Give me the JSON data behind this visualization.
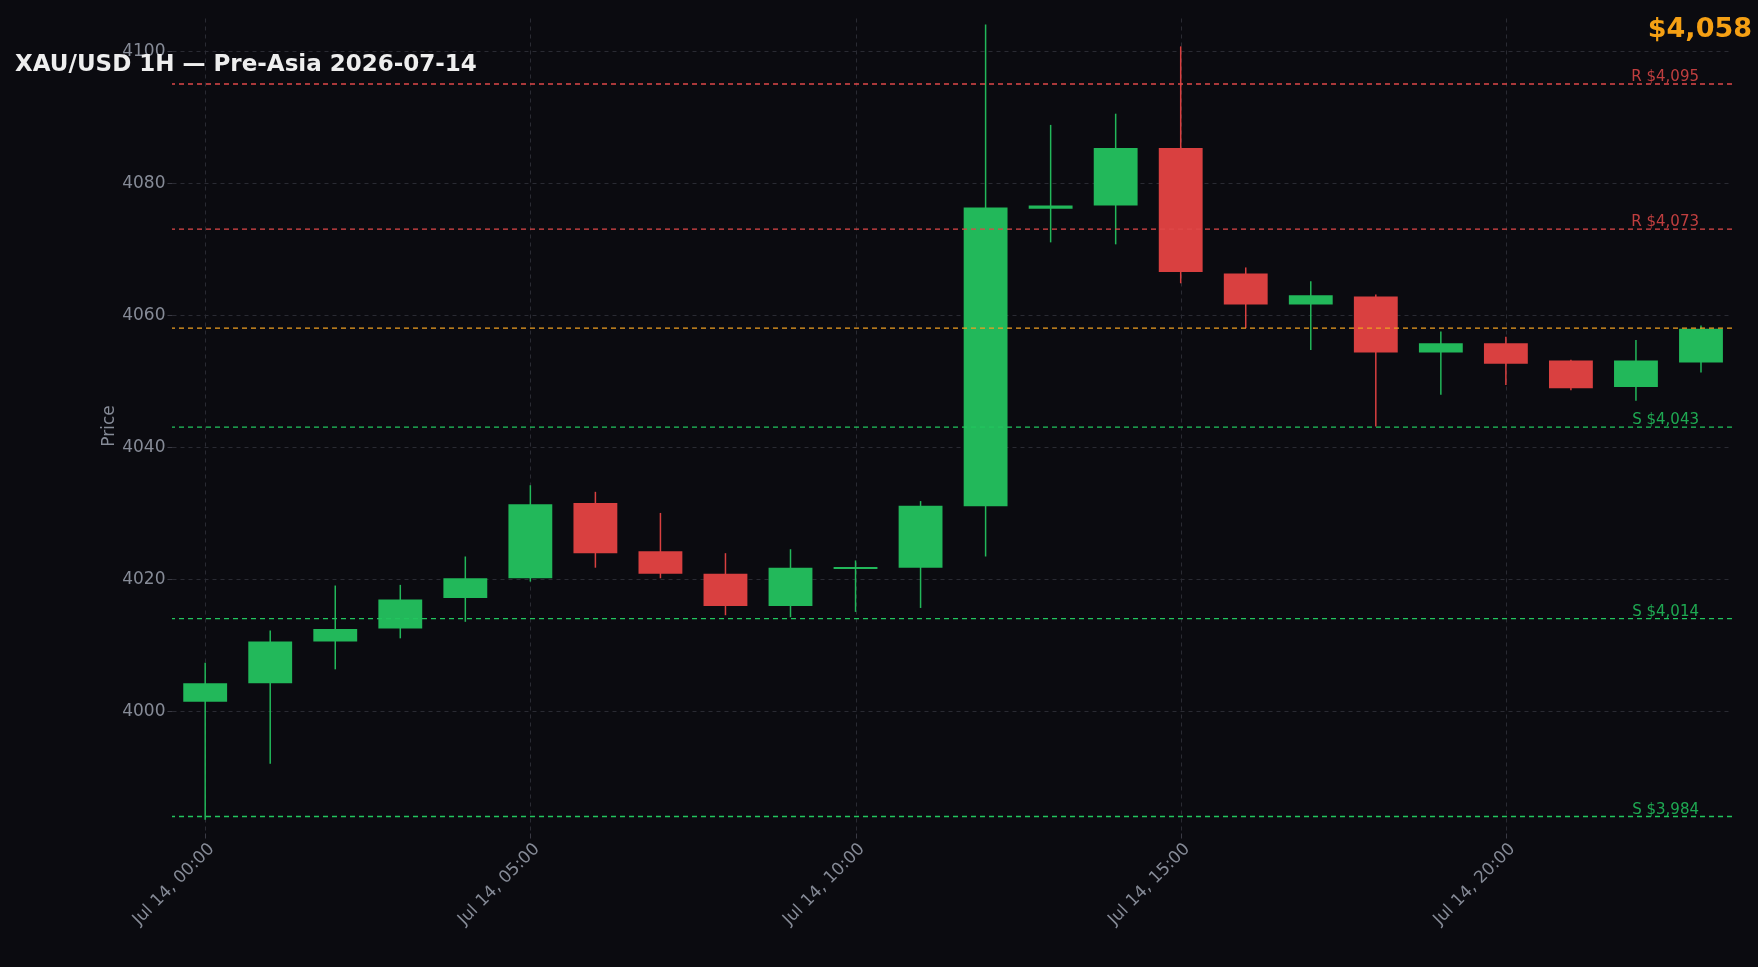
{
  "chart_data": {
    "type": "candlestick",
    "title": "XAU/USD 1H — Pre-Asia 2026-07-14",
    "ylabel": "Price",
    "x": [
      "2026-07-14T00:00",
      "2026-07-14T01:00",
      "2026-07-14T02:00",
      "2026-07-14T03:00",
      "2026-07-14T04:00",
      "2026-07-14T05:00",
      "2026-07-14T06:00",
      "2026-07-14T07:00",
      "2026-07-14T08:00",
      "2026-07-14T09:00",
      "2026-07-14T10:00",
      "2026-07-14T11:00",
      "2026-07-14T12:00",
      "2026-07-14T13:00",
      "2026-07-14T14:00",
      "2026-07-14T15:00",
      "2026-07-14T16:00",
      "2026-07-14T17:00",
      "2026-07-14T18:00",
      "2026-07-14T19:00",
      "2026-07-14T20:00",
      "2026-07-14T21:00",
      "2026-07-14T22:00",
      "2026-07-14T23:00"
    ],
    "ohlc": [
      [
        4001.4,
        4007.3,
        3983.5,
        4004.2
      ],
      [
        4004.2,
        4012.2,
        3992,
        4010.5
      ],
      [
        4010.5,
        4019,
        4006.3,
        4012.4
      ],
      [
        4012.5,
        4019.1,
        4011,
        4016.9
      ],
      [
        4017.1,
        4023.4,
        4013.5,
        4020.1
      ],
      [
        4020.1,
        4034.2,
        4019.6,
        4031.3
      ],
      [
        4031.5,
        4033.2,
        4021.7,
        4023.9
      ],
      [
        4024.2,
        4030,
        4020.1,
        4020.8
      ],
      [
        4020.8,
        4023.9,
        4014.5,
        4015.9
      ],
      [
        4015.9,
        4024.5,
        4014.2,
        4021.7
      ],
      [
        4021.5,
        4022.8,
        4015,
        4021.8
      ],
      [
        4021.7,
        4031.8,
        4015.6,
        4031.1
      ],
      [
        4031,
        4104,
        4023.4,
        4076.3
      ],
      [
        4076.1,
        4088.8,
        4071,
        4076.6
      ],
      [
        4076.6,
        4090.5,
        4070.7,
        4085.3
      ],
      [
        4085.3,
        4100.7,
        4064.8,
        4066.5
      ],
      [
        4066.3,
        4067.2,
        4058,
        4061.6
      ],
      [
        4061.6,
        4065.1,
        4054.7,
        4063
      ],
      [
        4062.8,
        4063.1,
        4043.1,
        4054.3
      ],
      [
        4054.3,
        4057.5,
        4047.9,
        4055.7
      ],
      [
        4055.7,
        4056.7,
        4049.4,
        4052.6
      ],
      [
        4053.1,
        4053.2,
        4048.6,
        4048.9
      ],
      [
        4049.1,
        4056.2,
        4047,
        4053.1
      ],
      [
        4052.8,
        4058.4,
        4051.3,
        4057.9
      ]
    ],
    "colors": [
      "#22b85a",
      "#22b85a",
      "#22b85a",
      "#22b85a",
      "#22b85a",
      "#22b85a",
      "#d94040",
      "#d94040",
      "#d94040",
      "#22b85a",
      "#22b85a",
      "#22b85a",
      "#22b85a",
      "#22b85a",
      "#22b85a",
      "#d94040",
      "#d94040",
      "#22b85a",
      "#d94040",
      "#22b85a",
      "#d94040",
      "#d94040",
      "#22b85a",
      "#22b85a"
    ],
    "xlim": [
      "2026-07-13T23:34",
      "2026-07-14T23:24"
    ],
    "xticks": [
      {
        "value": "2026-07-14T00:00",
        "label": "Jul 14, 00:00"
      },
      {
        "value": "2026-07-14T05:00",
        "label": "Jul 14, 05:00"
      },
      {
        "value": "2026-07-14T10:00",
        "label": "Jul 14, 10:00"
      },
      {
        "value": "2026-07-14T15:00",
        "label": "Jul 14, 15:00"
      },
      {
        "value": "2026-07-14T20:00",
        "label": "Jul 14, 20:00"
      }
    ],
    "ylim": [
      3981.5,
      4105
    ],
    "yticks": [
      4000,
      4020,
      4040,
      4060,
      4080,
      4100
    ],
    "grid": true,
    "ref_lines": [
      {
        "axis": "y",
        "value": 4095,
        "label": "R $4,095",
        "color": "#e04848",
        "line_style": "dashed"
      },
      {
        "axis": "y",
        "value": 4073,
        "label": "R $4,073",
        "color": "#e04848",
        "line_style": "dashed"
      },
      {
        "axis": "y",
        "value": 4058,
        "label": null,
        "color": "#f0a020",
        "line_style": "dashed"
      },
      {
        "axis": "y",
        "value": 4043,
        "label": "S $4,043",
        "color": "#22c55e",
        "line_style": "dashed"
      },
      {
        "axis": "y",
        "value": 4014,
        "label": "S $4,014",
        "color": "#22c55e",
        "line_style": "dashed"
      },
      {
        "axis": "y",
        "value": 3984,
        "label": "S $3,984",
        "color": "#22c55e",
        "line_style": "dashed"
      }
    ],
    "annotations": [
      "$4,058"
    ]
  }
}
